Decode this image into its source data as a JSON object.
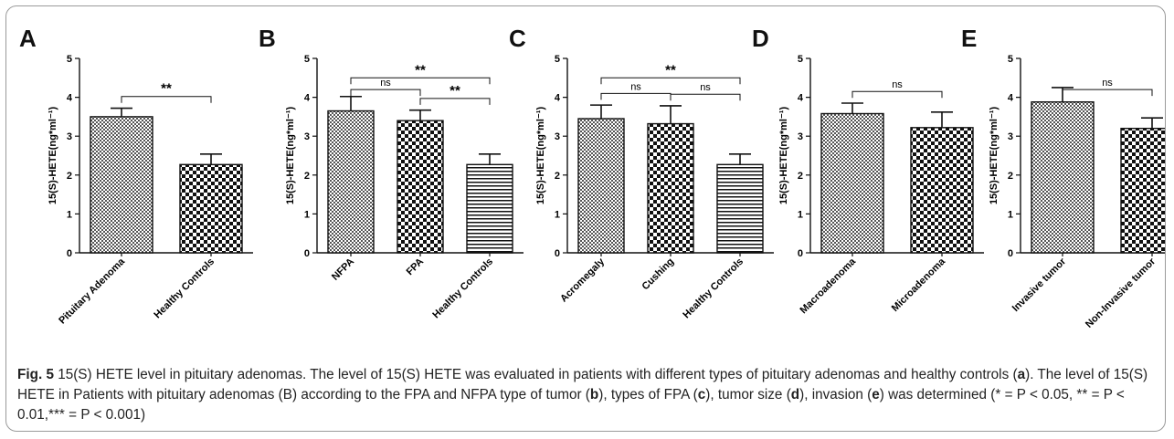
{
  "chart_data": [
    {
      "type": "bar",
      "panel": "A",
      "ylabel": "15(S)-HETE(ng*ml⁻¹)",
      "ylim": [
        0,
        5
      ],
      "yticks": [
        "0",
        "1",
        "2",
        "3",
        "4",
        "5"
      ],
      "categories": [
        "Pituitary Adenoma",
        "Healthy Controls"
      ],
      "values": [
        3.5,
        2.27
      ],
      "errors": [
        0.22,
        0.27
      ],
      "patterns": [
        "fine-check",
        "coarse-check"
      ],
      "significance": [
        {
          "from": 0,
          "to": 1,
          "label": "**"
        }
      ]
    },
    {
      "type": "bar",
      "panel": "B",
      "ylabel": "15(S)-HETE(ng*ml⁻¹)",
      "ylim": [
        0,
        5
      ],
      "yticks": [
        "0",
        "1",
        "2",
        "3",
        "4",
        "5"
      ],
      "categories": [
        "NFPA",
        "FPA",
        "Healthy Controls"
      ],
      "values": [
        3.65,
        3.4,
        2.27
      ],
      "errors": [
        0.37,
        0.27,
        0.27
      ],
      "patterns": [
        "fine-check",
        "coarse-check",
        "hlines"
      ],
      "significance": [
        {
          "from": 0,
          "to": 1,
          "label": "ns"
        },
        {
          "from": 1,
          "to": 2,
          "label": "**"
        },
        {
          "from": 0,
          "to": 2,
          "label": "**"
        }
      ]
    },
    {
      "type": "bar",
      "panel": "C",
      "ylabel": "15(S)-HETE(ng*ml⁻¹)",
      "ylim": [
        0,
        5
      ],
      "yticks": [
        "0",
        "1",
        "2",
        "3",
        "4",
        "5"
      ],
      "categories": [
        "Acromegaly",
        "Cushing",
        "Healthy Controls"
      ],
      "values": [
        3.45,
        3.32,
        2.27
      ],
      "errors": [
        0.35,
        0.46,
        0.27
      ],
      "patterns": [
        "fine-check",
        "coarse-check",
        "hlines"
      ],
      "significance": [
        {
          "from": 0,
          "to": 1,
          "label": "ns"
        },
        {
          "from": 1,
          "to": 2,
          "label": "ns"
        },
        {
          "from": 0,
          "to": 2,
          "label": "**"
        }
      ]
    },
    {
      "type": "bar",
      "panel": "D",
      "ylabel": "15(S)-HETE(ng*ml⁻¹)",
      "ylim": [
        0,
        5
      ],
      "yticks": [
        "0",
        "1",
        "2",
        "3",
        "4",
        "5"
      ],
      "categories": [
        "Macroadenoma",
        "Microadenoma"
      ],
      "values": [
        3.58,
        3.22
      ],
      "errors": [
        0.27,
        0.4
      ],
      "patterns": [
        "fine-check",
        "coarse-check"
      ],
      "significance": [
        {
          "from": 0,
          "to": 1,
          "label": "ns"
        }
      ]
    },
    {
      "type": "bar",
      "panel": "E",
      "ylabel": "15(S)-HETE(ng*ml⁻¹)",
      "ylim": [
        0,
        5
      ],
      "yticks": [
        "0",
        "1",
        "2",
        "3",
        "4",
        "5"
      ],
      "categories": [
        "Invasive tumor",
        "Non-Invasive tumor"
      ],
      "values": [
        3.88,
        3.2
      ],
      "errors": [
        0.37,
        0.27
      ],
      "patterns": [
        "fine-check",
        "coarse-check"
      ],
      "significance": [
        {
          "from": 0,
          "to": 1,
          "label": "ns"
        }
      ]
    }
  ],
  "caption": {
    "fig_label": "Fig. 5",
    "seg1": " 15(S) HETE level in pituitary adenomas. The level of 15(S) HETE was evaluated in patients with different types of pituitary adenomas and healthy controls (",
    "ref_a": "a",
    "seg2": "). The level of 15(S) HETE in Patients with pituitary adenomas (B) according to the FPA and NFPA type of tumor (",
    "ref_b": "b",
    "seg3": "), types of FPA (",
    "ref_c": "c",
    "seg4": "), tumor size (",
    "ref_d": "d",
    "seg5": "), invasion (",
    "ref_e": "e",
    "seg6": ") was determined (* = P < 0.05, ** = P < 0.01,*** = P < 0.001)"
  }
}
